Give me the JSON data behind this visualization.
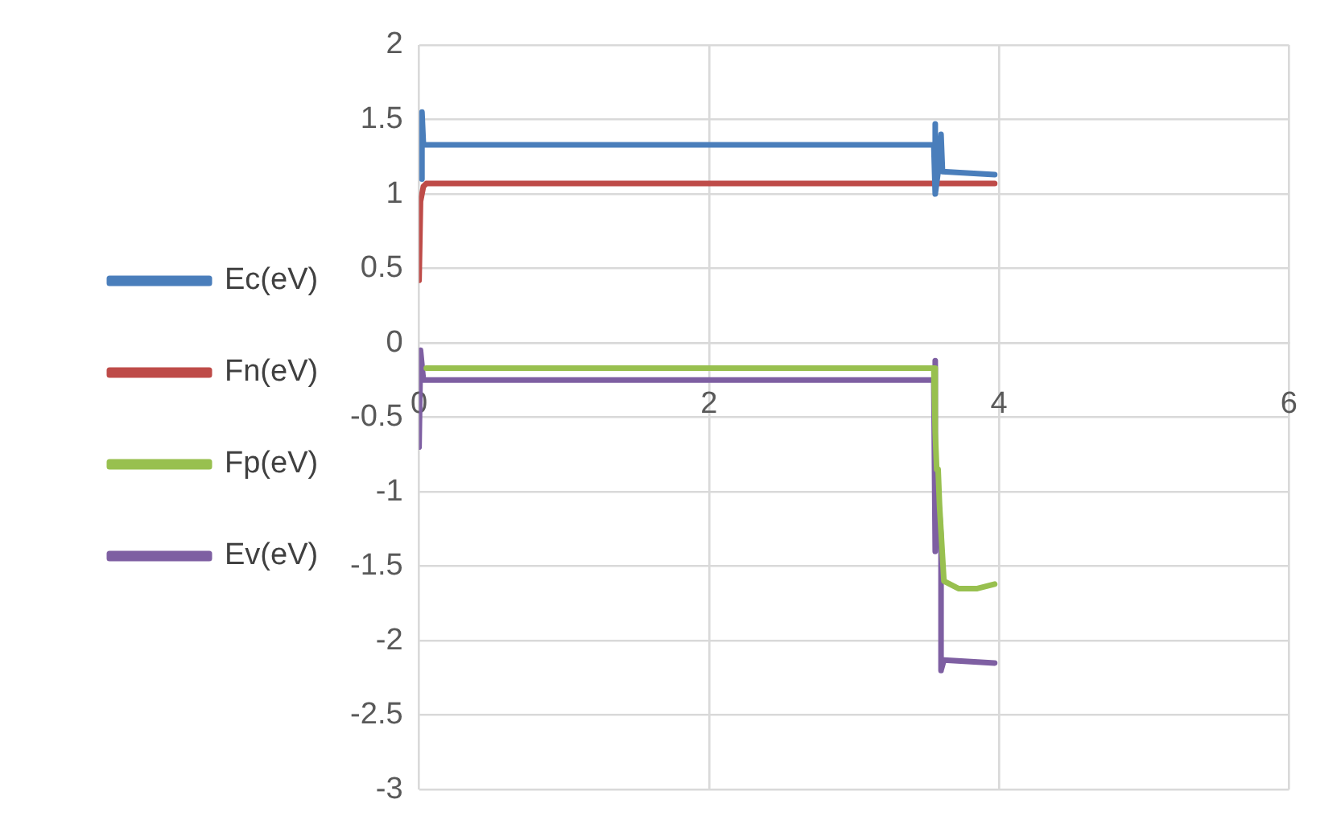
{
  "chart_data": {
    "type": "line",
    "xlim": [
      0,
      6
    ],
    "xticks": [
      0,
      2,
      4,
      6
    ],
    "ylim": [
      -3,
      2
    ],
    "yticks": [
      2,
      1.5,
      1,
      0.5,
      0,
      -0.5,
      -1,
      -1.5,
      -2,
      -2.5,
      -3
    ],
    "grid": true,
    "legend": "left",
    "marker": "none",
    "line_style": "solid",
    "series": [
      {
        "name": "Ec(eV)",
        "color": "#4a7ebb",
        "x": [
          0.02,
          0.02,
          0.03,
          3.55,
          3.56,
          3.56,
          3.58,
          3.6,
          3.61,
          3.97
        ],
        "values": [
          1.1,
          1.55,
          1.33,
          1.33,
          1.47,
          1.0,
          1.15,
          1.4,
          1.15,
          1.13
        ]
      },
      {
        "name": "Fn(eV)",
        "color": "#be4b48",
        "x": [
          0,
          0.01,
          0.03,
          0.05,
          3.97
        ],
        "values": [
          0.42,
          0.95,
          1.05,
          1.07,
          1.07
        ]
      },
      {
        "name": "Fp(eV)",
        "color": "#98c04f",
        "x": [
          0.05,
          3.55,
          3.56,
          3.57,
          3.58,
          3.59,
          3.62,
          3.72,
          3.85,
          3.97
        ],
        "values": [
          -0.17,
          -0.17,
          -0.6,
          -0.85,
          -0.85,
          -1.1,
          -1.6,
          -1.65,
          -1.65,
          -1.62
        ]
      },
      {
        "name": "Ev(eV)",
        "color": "#7e5fa2",
        "x": [
          0,
          0.01,
          0.03,
          3.55,
          3.56,
          3.56,
          3.58,
          3.6,
          3.6,
          3.62,
          3.97
        ],
        "values": [
          -0.7,
          -0.05,
          -0.25,
          -0.25,
          -0.12,
          -1.4,
          -1.0,
          -1.3,
          -2.2,
          -2.13,
          -2.15
        ]
      }
    ]
  }
}
